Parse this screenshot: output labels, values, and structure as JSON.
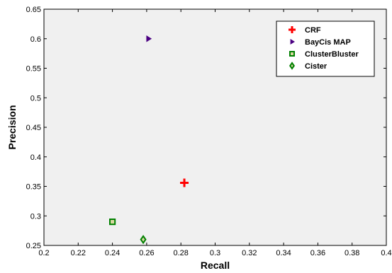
{
  "chart_data": {
    "type": "scatter",
    "xlabel": "Recall",
    "ylabel": "Precision",
    "xlim": [
      0.2,
      0.4
    ],
    "ylim": [
      0.25,
      0.65
    ],
    "xticks": [
      "0.2",
      "0.22",
      "0.24",
      "0.26",
      "0.28",
      "0.3",
      "0.32",
      "0.34",
      "0.36",
      "0.38",
      "0.4"
    ],
    "yticks": [
      "0.25",
      "0.3",
      "0.35",
      "0.4",
      "0.45",
      "0.5",
      "0.55",
      "0.6",
      "0.65"
    ],
    "grid": false,
    "legend_position": "top-right",
    "plot_background": "#f0f0f0",
    "series": [
      {
        "name": "CRF",
        "x": 0.282,
        "y": 0.356,
        "marker": "plus",
        "color": "#ff0000"
      },
      {
        "name": "BayCis MAP",
        "x": 0.261,
        "y": 0.6,
        "marker": "triangle-right",
        "color": "#4b0082"
      },
      {
        "name": "ClusterBluster",
        "x": 0.24,
        "y": 0.29,
        "marker": "square",
        "color": "#008000"
      },
      {
        "name": "Cister",
        "x": 0.258,
        "y": 0.26,
        "marker": "diamond",
        "color": "#008000"
      }
    ]
  }
}
